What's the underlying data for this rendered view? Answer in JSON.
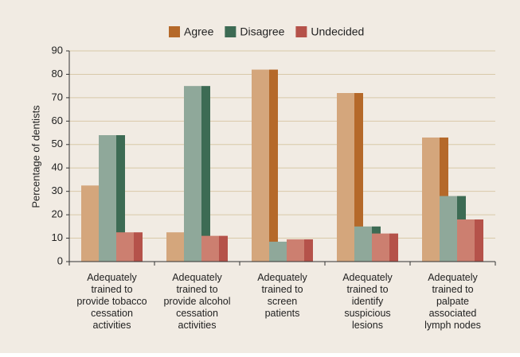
{
  "chart_data": {
    "type": "bar",
    "ylabel": "Percentage of dentists",
    "categories": [
      "Adequately\ntrained to\nprovide tobacco\ncessation\nactivities",
      "Adequately\ntrained to\nprovide alcohol\ncessation\nactivities",
      "Adequately\ntrained to\nscreen\npatients",
      "Adequately\ntrained to\nidentify\nsuspicious\nlesions",
      "Adequately\ntrained to\npalpate\nassociated\nlymph nodes"
    ],
    "series": [
      {
        "name": "Agree",
        "color": "#b5692a",
        "face_color": "#d4a67c",
        "values": [
          32.5,
          12.5,
          82,
          72,
          53
        ]
      },
      {
        "name": "Disagree",
        "color": "#3d6b54",
        "face_color": "#8fa89a",
        "values": [
          54,
          75,
          8.5,
          15,
          28
        ]
      },
      {
        "name": "Undecided",
        "color": "#b5524a",
        "face_color": "#cc7f70",
        "values": [
          12.5,
          11,
          9.5,
          12,
          18
        ]
      }
    ],
    "ylim": [
      0,
      90
    ],
    "yticks": [
      0,
      10,
      20,
      30,
      40,
      50,
      60,
      70,
      80,
      90
    ],
    "grid": true,
    "legend": "top"
  }
}
